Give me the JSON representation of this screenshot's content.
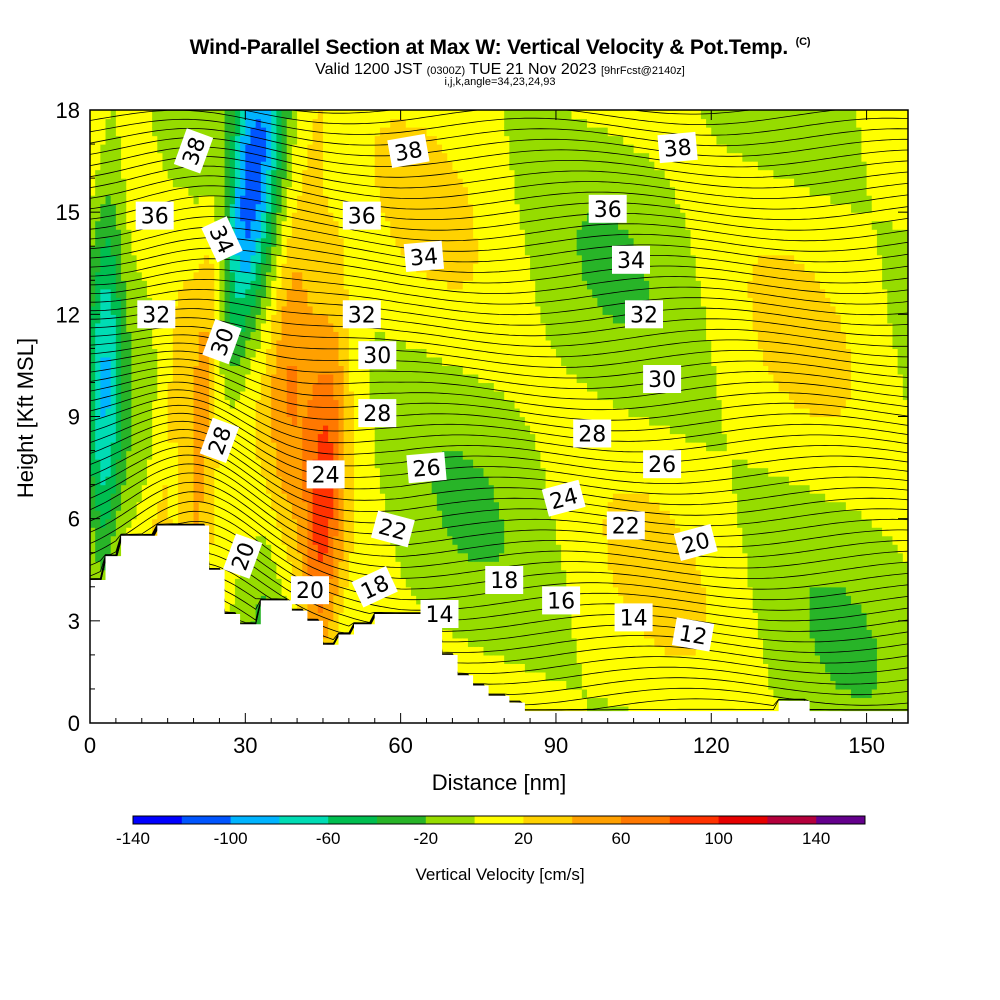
{
  "title": {
    "main": "Wind-Parallel Section at Max W: Vertical Velocity & Pot.Temp.",
    "copyright": "(C)",
    "valid_prefix": "Valid 1200 JST",
    "valid_zulu": "(0300Z)",
    "valid_date": "TUE 21 Nov 2023",
    "forecast": "[9hrFcst@2140z]",
    "indices": "i,j,k,angle=34,23,24,93"
  },
  "chart_data": {
    "type": "heatmap",
    "xlabel": "Distance [nm]",
    "ylabel": "Height [Kft MSL]",
    "xlim": [
      0,
      158
    ],
    "ylim": [
      0,
      18
    ],
    "x_ticks": [
      0,
      30,
      60,
      90,
      120,
      150
    ],
    "y_ticks": [
      0,
      3,
      6,
      9,
      12,
      15,
      18
    ],
    "colorbar": {
      "title": "Vertical Velocity [cm/s]",
      "range": [
        -140,
        160
      ],
      "tick_values": [
        -140,
        -100,
        -60,
        -20,
        20,
        60,
        100,
        140
      ],
      "colors": [
        "#0000ff",
        "#0055ff",
        "#00b4ff",
        "#00dcb4",
        "#00be50",
        "#28b428",
        "#96dc00",
        "#ffff00",
        "#ffd200",
        "#ffa000",
        "#ff7800",
        "#ff3200",
        "#e60000",
        "#b4003c",
        "#64008c"
      ]
    },
    "terrain_profile": [
      [
        0,
        4.2
      ],
      [
        3,
        4.2
      ],
      [
        3,
        4.9
      ],
      [
        6,
        4.9
      ],
      [
        6,
        5.5
      ],
      [
        13,
        5.5
      ],
      [
        13,
        5.8
      ],
      [
        23,
        5.8
      ],
      [
        23,
        4.5
      ],
      [
        26,
        4.5
      ],
      [
        26,
        3.2
      ],
      [
        29,
        3.2
      ],
      [
        29,
        2.9
      ],
      [
        33,
        2.9
      ],
      [
        33,
        3.6
      ],
      [
        39,
        3.6
      ],
      [
        39,
        3.3
      ],
      [
        42,
        3.3
      ],
      [
        42,
        3.0
      ],
      [
        45,
        3.0
      ],
      [
        45,
        2.3
      ],
      [
        48,
        2.3
      ],
      [
        48,
        2.6
      ],
      [
        51,
        2.6
      ],
      [
        51,
        2.9
      ],
      [
        55,
        2.9
      ],
      [
        55,
        3.2
      ],
      [
        68,
        3.2
      ],
      [
        68,
        2.0
      ],
      [
        71,
        2.0
      ],
      [
        71,
        1.4
      ],
      [
        74,
        1.4
      ],
      [
        74,
        1.1
      ],
      [
        77,
        1.1
      ],
      [
        77,
        0.8
      ],
      [
        81,
        0.8
      ],
      [
        81,
        0.6
      ],
      [
        84,
        0.6
      ],
      [
        84,
        0.35
      ],
      [
        133,
        0.35
      ],
      [
        133,
        0.65
      ],
      [
        139,
        0.65
      ],
      [
        139,
        0.35
      ],
      [
        158,
        0.35
      ]
    ],
    "velocity_features": [
      {
        "x": 21,
        "y": 9,
        "value": 110,
        "width": 6,
        "tilt": 0.7
      },
      {
        "x": 29,
        "y": 14,
        "value": -120,
        "width": 5,
        "tilt": 0.9
      },
      {
        "x": 38,
        "y": 11,
        "value": 55,
        "width": 5,
        "tilt": 0.6
      },
      {
        "x": 45,
        "y": 6,
        "value": 70,
        "width": 4,
        "tilt": 0.3
      },
      {
        "x": 34,
        "y": 6,
        "value": -40,
        "width": 4,
        "tilt": 0.2
      },
      {
        "x": 18,
        "y": 8,
        "value": -50,
        "width": 3,
        "tilt": 0.5
      },
      {
        "x": 3,
        "y": 10,
        "value": -60,
        "width": 3,
        "tilt": 0.1
      }
    ],
    "isentropes": [
      12,
      14,
      16,
      18,
      20,
      22,
      24,
      26,
      28,
      30,
      32,
      34,
      36,
      38
    ],
    "contour_labels": [
      {
        "text": "38",
        "x": 20,
        "y": 16.8,
        "angle": -70
      },
      {
        "text": "36",
        "x": 12.5,
        "y": 14.9,
        "angle": 0
      },
      {
        "text": "34",
        "x": 25.5,
        "y": 14.2,
        "angle": 65
      },
      {
        "text": "32",
        "x": 12.8,
        "y": 12.0,
        "angle": 0
      },
      {
        "text": "30",
        "x": 25.5,
        "y": 11.2,
        "angle": -70
      },
      {
        "text": "28",
        "x": 25,
        "y": 8.3,
        "angle": -70
      },
      {
        "text": "20",
        "x": 29.5,
        "y": 4.9,
        "angle": -70
      },
      {
        "text": "24",
        "x": 45.5,
        "y": 7.3,
        "angle": 0
      },
      {
        "text": "20",
        "x": 42.5,
        "y": 3.9,
        "angle": 0
      },
      {
        "text": "18",
        "x": 55,
        "y": 4.0,
        "angle": -25
      },
      {
        "text": "14",
        "x": 67.5,
        "y": 3.2,
        "angle": 0
      },
      {
        "text": "38",
        "x": 61.5,
        "y": 16.8,
        "angle": -10
      },
      {
        "text": "36",
        "x": 52.5,
        "y": 14.9,
        "angle": 0
      },
      {
        "text": "34",
        "x": 64.5,
        "y": 13.7,
        "angle": -5
      },
      {
        "text": "32",
        "x": 52.5,
        "y": 12.0,
        "angle": 0
      },
      {
        "text": "30",
        "x": 55.5,
        "y": 10.8,
        "angle": 0
      },
      {
        "text": "28",
        "x": 55.5,
        "y": 9.1,
        "angle": 0
      },
      {
        "text": "26",
        "x": 65,
        "y": 7.5,
        "angle": -5
      },
      {
        "text": "22",
        "x": 58.5,
        "y": 5.7,
        "angle": 15
      },
      {
        "text": "18",
        "x": 80,
        "y": 4.2,
        "angle": 0
      },
      {
        "text": "16",
        "x": 91,
        "y": 3.6,
        "angle": 0
      },
      {
        "text": "14",
        "x": 105,
        "y": 3.1,
        "angle": 0
      },
      {
        "text": "12",
        "x": 116.5,
        "y": 2.6,
        "angle": 10
      },
      {
        "text": "38",
        "x": 113.5,
        "y": 16.9,
        "angle": -5
      },
      {
        "text": "36",
        "x": 100,
        "y": 15.1,
        "angle": 0
      },
      {
        "text": "34",
        "x": 104.5,
        "y": 13.6,
        "angle": 0
      },
      {
        "text": "32",
        "x": 107,
        "y": 12.0,
        "angle": 0
      },
      {
        "text": "30",
        "x": 110.5,
        "y": 10.1,
        "angle": 0
      },
      {
        "text": "28",
        "x": 97,
        "y": 8.5,
        "angle": 0
      },
      {
        "text": "26",
        "x": 110.5,
        "y": 7.6,
        "angle": 0
      },
      {
        "text": "24",
        "x": 91.5,
        "y": 6.6,
        "angle": -15
      },
      {
        "text": "22",
        "x": 103.5,
        "y": 5.8,
        "angle": 0
      },
      {
        "text": "20",
        "x": 117,
        "y": 5.3,
        "angle": -15
      }
    ]
  }
}
